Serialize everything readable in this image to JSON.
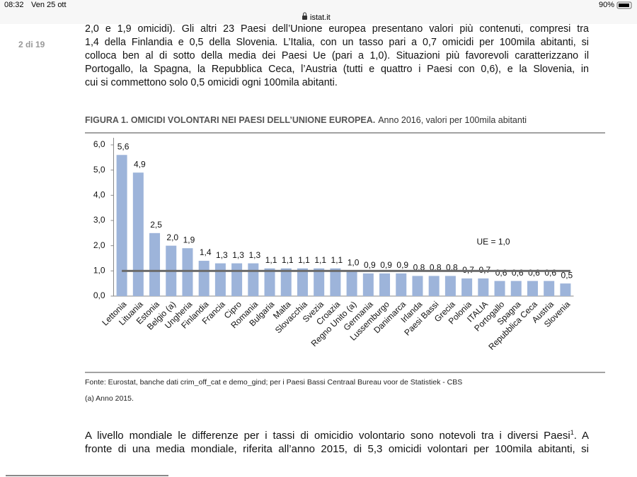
{
  "status_bar": {
    "time": "08:32",
    "date": "Ven 25 ott",
    "url": "istat.it",
    "battery": "90%"
  },
  "page_indicator": "2 di 19",
  "paragraph_1": [
    "2,0 e 1,9 omicidi). Gli altri 23 Paesi dell’Unione europea presentano valori più contenuti, compresi tra",
    "1,4 della Finlandia e 0,5 della Slovenia. L’Italia, con un tasso pari a 0,7 omicidi per 100mila abitanti, si",
    "colloca ben al di sotto della media dei Paesi Ue (pari a 1,0). Situazioni più favorevoli caratterizzano il",
    "Portogallo, la Spagna, la Repubblica Ceca, l’Austria (tutti e quattro i Paesi con 0,6), e la Slovenia, in",
    "cui si commettono solo 0,5 omicidi ogni 100mila abitanti."
  ],
  "chart_data": {
    "type": "bar",
    "title": "FIGURA 1. OMICIDI VOLONTARI NEI PAESI DELL’UNIONE EUROPEA.",
    "subtitle": "Anno 2016, valori per 100mila abitanti",
    "categories": [
      "Lettonia",
      "Lituania",
      "Estonia",
      "Belgio (a)",
      "Ungheria",
      "Finlandia",
      "Francia",
      "Cipro",
      "Romania",
      "Bulgaria",
      "Malta",
      "Slovacchia",
      "Svezia",
      "Croazia",
      "Regno Unito (a)",
      "Germania",
      "Lussemburgo",
      "Danimarca",
      "Irlanda",
      "Paesi Bassi",
      "Grecia",
      "Polonia",
      "ITALIA",
      "Portogallo",
      "Spagna",
      "Repubblica Ceca",
      "Austria",
      "Slovenia"
    ],
    "values": [
      5.6,
      4.9,
      2.5,
      2.0,
      1.9,
      1.4,
      1.3,
      1.3,
      1.3,
      1.1,
      1.1,
      1.1,
      1.1,
      1.1,
      1.0,
      0.9,
      0.9,
      0.9,
      0.8,
      0.8,
      0.8,
      0.7,
      0.7,
      0.6,
      0.6,
      0.6,
      0.6,
      0.5
    ],
    "value_labels": [
      "5,6",
      "4,9",
      "2,5",
      "2,0",
      "1,9",
      "1,4",
      "1,3",
      "1,3",
      "1,3",
      "1,1",
      "1,1",
      "1,1",
      "1,1",
      "1,1",
      "1,0",
      "0,9",
      "0,9",
      "0,9",
      "0,8",
      "0,8",
      "0,8",
      "0,7",
      "0,7",
      "0,6",
      "0,6",
      "0,6",
      "0,6",
      "0,5"
    ],
    "color": "#9db4da",
    "ylim": [
      0,
      6
    ],
    "yticks": [
      {
        "value": 0,
        "label": "0,0"
      },
      {
        "value": 1,
        "label": "1,0"
      },
      {
        "value": 2,
        "label": "2,0"
      },
      {
        "value": 3,
        "label": "3,0"
      },
      {
        "value": 4,
        "label": "4,0"
      },
      {
        "value": 5,
        "label": "5,0"
      },
      {
        "value": 6,
        "label": "6,0"
      }
    ],
    "reference_line": {
      "value": 1,
      "label": "UE = 1,0",
      "color": "#6b6b6b"
    },
    "grid": false
  },
  "source": "Fonte: Eurostat, banche dati crim_off_cat e demo_gind; per i Paesi Bassi Centraal Bureau voor de Statistiek - CBS",
  "note": "(a) Anno 2015.",
  "paragraph_2": {
    "line_1": {
      "before": "A livello mondiale le differenze per i tassi di omicidio volontario sono notevoli tra i diversi Paesi",
      "sup": "1",
      "after": ". A"
    },
    "line_2": "fronte di una media mondiale, riferita all’anno 2015, di 5,3 omicidi volontari per 100mila abitanti, si"
  }
}
